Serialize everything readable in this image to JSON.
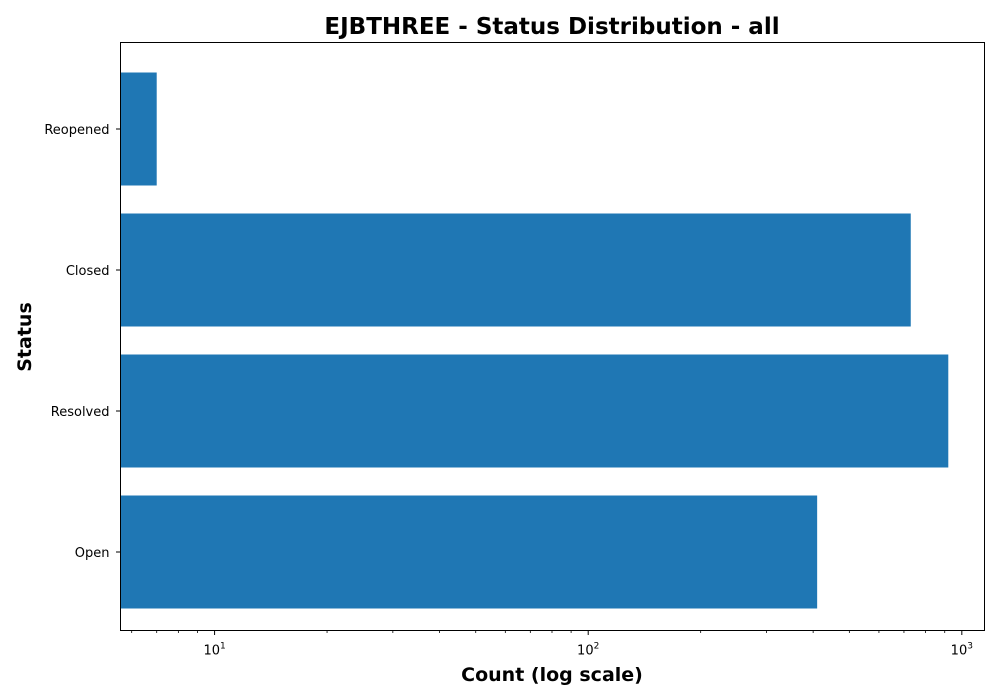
{
  "chart_data": {
    "type": "bar",
    "orientation": "horizontal",
    "title": "EJBTHREE - Status Distribution - all",
    "xlabel": "Count (log scale)",
    "ylabel": "Status",
    "x_scale": "log",
    "xlim": [
      5.6,
      1150
    ],
    "categories": [
      "Open",
      "Resolved",
      "Closed",
      "Reopened"
    ],
    "values": [
      410,
      920,
      730,
      7
    ],
    "x_ticks": [
      {
        "value": 10,
        "base": "10",
        "exp": "1"
      },
      {
        "value": 100,
        "base": "10",
        "exp": "2"
      },
      {
        "value": 1000,
        "base": "10",
        "exp": "3"
      }
    ],
    "grid": false,
    "legend": "none",
    "colors": {
      "bar": "#1f77b4",
      "axis": "#000000",
      "background": "#ffffff"
    }
  }
}
